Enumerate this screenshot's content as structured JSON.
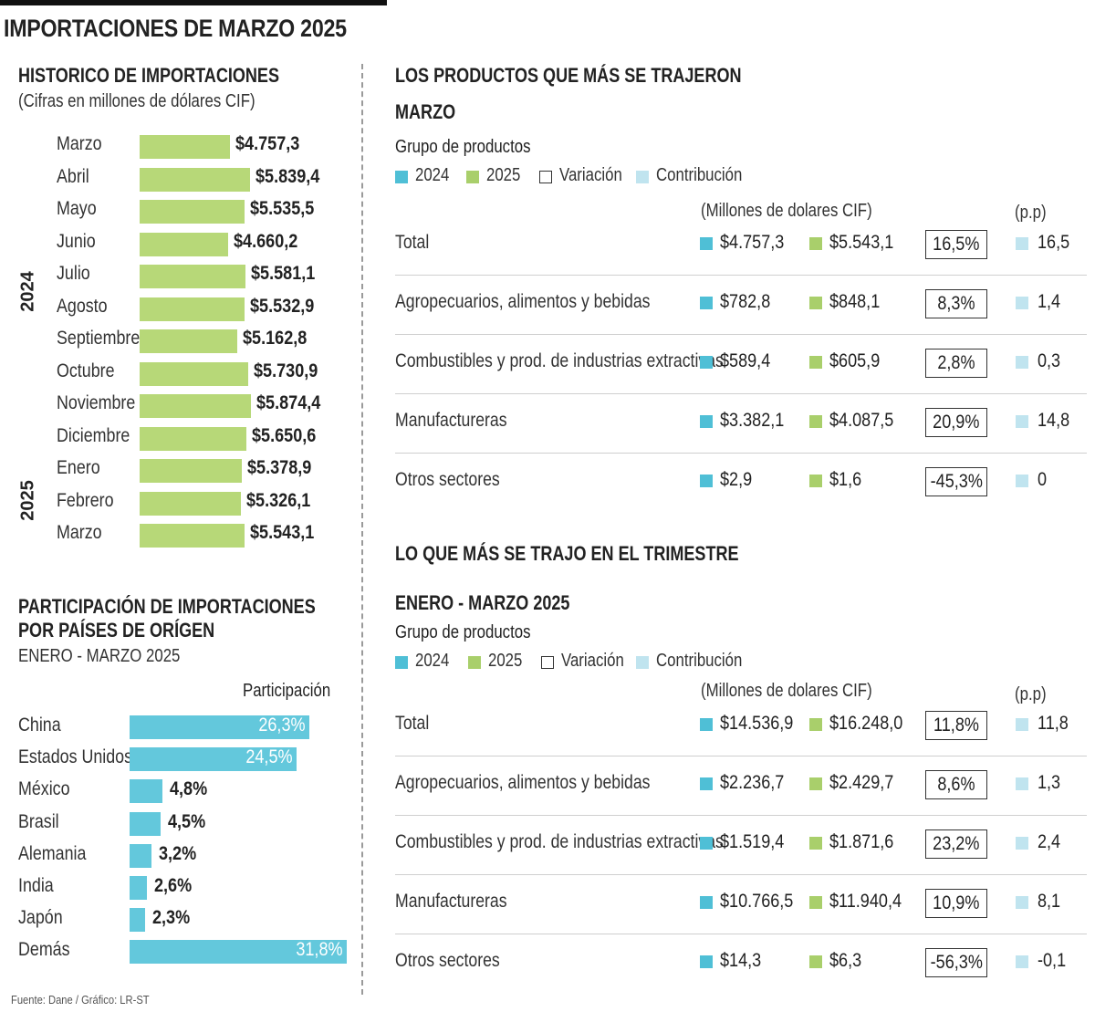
{
  "title": "IMPORTACIONES DE MARZO 2025",
  "colors": {
    "y2024": "#4fbfd6",
    "y2025": "#a9cf6b",
    "contribution": "#c0e4ef",
    "history_bar": "#b7d878",
    "country_bar": "#63c8dc"
  },
  "history": {
    "title": "HISTORICO DE IMPORTACIONES",
    "subtitle": "(Cifras en millones de dólares CIF)",
    "year_labels": [
      "2024",
      "2025"
    ]
  },
  "countries": {
    "title_line1": "PARTICIPACIÓN DE IMPORTACIONES",
    "title_line2": "POR PAÍSES DE ORÍGEN",
    "subtitle": "ENERO - MARZO 2025",
    "column_header": "Participación"
  },
  "march": {
    "title": "LOS PRODUCTOS QUE MÁS SE TRAJERON",
    "subtitle": "MARZO",
    "group_label": "Grupo de productos",
    "legend": {
      "y2024": "2024",
      "y2025": "2025",
      "variation": "Variación",
      "contribution": "Contribución"
    },
    "units_header": "(Millones de dolares CIF)",
    "pp_header": "(p.p)",
    "rows": [
      {
        "name": "Total",
        "v2024": "$4.757,3",
        "v2025": "$5.543,1",
        "variation": "16,5%",
        "contribution": "16,5"
      },
      {
        "name": "Agropecuarios, alimentos y bebidas",
        "v2024": "$782,8",
        "v2025": "$848,1",
        "variation": "8,3%",
        "contribution": "1,4"
      },
      {
        "name": "Combustibles y prod. de industrias extractivas",
        "v2024": "$589,4",
        "v2025": "$605,9",
        "variation": "2,8%",
        "contribution": "0,3"
      },
      {
        "name": "Manufactureras",
        "v2024": "$3.382,1",
        "v2025": "$4.087,5",
        "variation": "20,9%",
        "contribution": "14,8"
      },
      {
        "name": "Otros sectores",
        "v2024": "$2,9",
        "v2025": "$1,6",
        "variation": "-45,3%",
        "contribution": "0"
      }
    ]
  },
  "quarter": {
    "title": "LO QUE MÁS SE TRAJO EN EL TRIMESTRE",
    "subtitle": "ENERO - MARZO 2025",
    "group_label": "Grupo de productos",
    "legend": {
      "y2024": "2024",
      "y2025": "2025",
      "variation": "Variación",
      "contribution": "Contribución"
    },
    "units_header": "(Millones de dolares CIF)",
    "pp_header": "(p.p)",
    "rows": [
      {
        "name": "Total",
        "v2024": "$14.536,9",
        "v2025": "$16.248,0",
        "variation": "11,8%",
        "contribution": "11,8"
      },
      {
        "name": "Agropecuarios, alimentos y bebidas",
        "v2024": "$2.236,7",
        "v2025": "$2.429,7",
        "variation": "8,6%",
        "contribution": "1,3"
      },
      {
        "name": "Combustibles y prod. de industrias extractivas",
        "v2024": "$1.519,4",
        "v2025": "$1.871,6",
        "variation": "23,2%",
        "contribution": "2,4"
      },
      {
        "name": "Manufactureras",
        "v2024": "$10.766,5",
        "v2025": "$11.940,4",
        "variation": "10,9%",
        "contribution": "8,1"
      },
      {
        "name": "Otros sectores",
        "v2024": "$14,3",
        "v2025": "$6,3",
        "variation": "-56,3%",
        "contribution": "-0,1"
      }
    ]
  },
  "source": "Fuente: Dane / Gráfico: LR-ST",
  "chart_data": [
    {
      "type": "bar",
      "title": "HISTORICO DE IMPORTACIONES",
      "subtitle": "(Cifras en millones de dólares CIF)",
      "orientation": "horizontal",
      "categories": [
        "Marzo",
        "Abril",
        "Mayo",
        "Junio",
        "Julio",
        "Agosto",
        "Septiembre",
        "Octubre",
        "Noviembre",
        "Diciembre",
        "Enero",
        "Febrero",
        "Marzo"
      ],
      "values": [
        4757.3,
        5839.4,
        5535.5,
        4660.2,
        5581.1,
        5532.9,
        5162.8,
        5730.9,
        5874.4,
        5650.6,
        5378.9,
        5326.1,
        5543.1
      ],
      "value_labels": [
        "$4.757,3",
        "$5.839,4",
        "$5.535,5",
        "$4.660,2",
        "$5.581,1",
        "$5.532,9",
        "$5.162,8",
        "$5.730,9",
        "$5.874,4",
        "$5.650,6",
        "$5.378,9",
        "$5.326,1",
        "$5.543,1"
      ],
      "year_groups": [
        {
          "label": "2024",
          "first": 0,
          "last": 9
        },
        {
          "label": "2025",
          "first": 10,
          "last": 12
        }
      ],
      "xlim": [
        0,
        5874.4
      ],
      "grid": false
    },
    {
      "type": "bar",
      "title": "PARTICIPACIÓN DE IMPORTACIONES POR PAÍSES DE ORÍGEN",
      "subtitle": "ENERO - MARZO 2025",
      "orientation": "horizontal",
      "categories": [
        "China",
        "Estados Unidos",
        "México",
        "Brasil",
        "Alemania",
        "India",
        "Japón",
        "Demás"
      ],
      "values": [
        26.3,
        24.5,
        4.8,
        4.5,
        3.2,
        2.6,
        2.3,
        31.8
      ],
      "value_labels": [
        "26,3%",
        "24,5%",
        "4,8%",
        "4,5%",
        "3,2%",
        "2,6%",
        "2,3%",
        "31,8%"
      ],
      "xlim": [
        0,
        31.8
      ],
      "grid": false
    },
    {
      "type": "table",
      "title": "LOS PRODUCTOS QUE MÁS SE TRAJERON",
      "subtitle": "MARZO",
      "columns": [
        "Grupo de productos",
        "2024",
        "2025",
        "Variación",
        "Contribución"
      ],
      "rows": [
        [
          "Total",
          4757.3,
          5543.1,
          16.5,
          16.5
        ],
        [
          "Agropecuarios, alimentos y bebidas",
          782.8,
          848.1,
          8.3,
          1.4
        ],
        [
          "Combustibles y prod. de industrias extractivas",
          589.4,
          605.9,
          2.8,
          0.3
        ],
        [
          "Manufactureras",
          3382.1,
          4087.5,
          20.9,
          14.8
        ],
        [
          "Otros sectores",
          2.9,
          1.6,
          -45.3,
          0
        ]
      ]
    },
    {
      "type": "table",
      "title": "LO QUE MÁS SE TRAJO EN EL TRIMESTRE",
      "subtitle": "ENERO - MARZO 2025",
      "columns": [
        "Grupo de productos",
        "2024",
        "2025",
        "Variación",
        "Contribución"
      ],
      "rows": [
        [
          "Total",
          14536.9,
          16248.0,
          11.8,
          11.8
        ],
        [
          "Agropecuarios, alimentos y bebidas",
          2236.7,
          2429.7,
          8.6,
          1.3
        ],
        [
          "Combustibles y prod. de industrias extractivas",
          1519.4,
          1871.6,
          23.2,
          2.4
        ],
        [
          "Manufactureras",
          10766.5,
          11940.4,
          10.9,
          8.1
        ],
        [
          "Otros sectores",
          14.3,
          6.3,
          -56.3,
          -0.1
        ]
      ]
    }
  ]
}
